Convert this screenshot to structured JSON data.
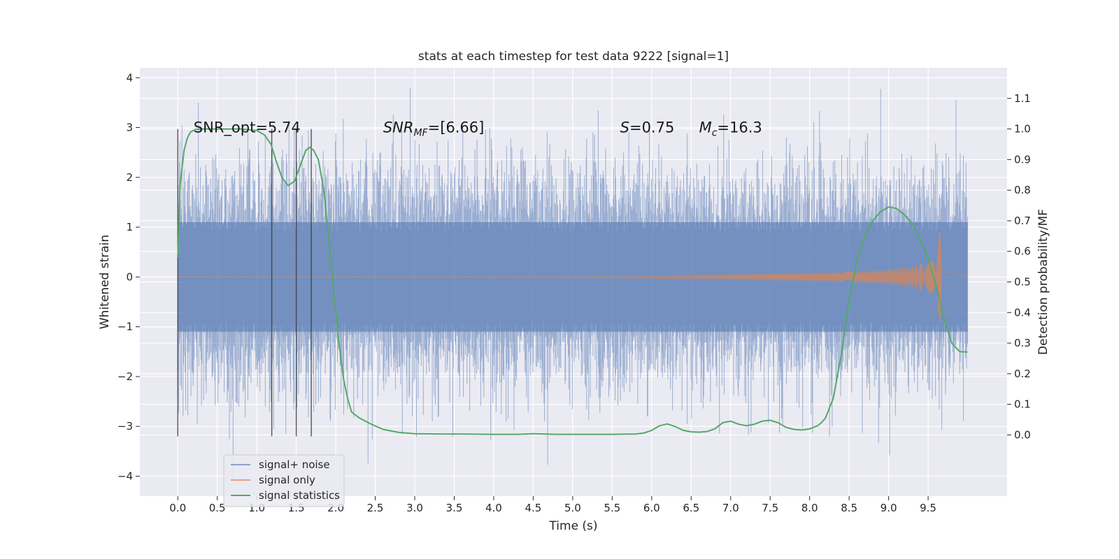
{
  "chart_data": {
    "type": "line",
    "title": "stats at each timestep for test data 9222 [signal=1]",
    "xlabel": "Time (s)",
    "ylabel_left": "Whitened strain",
    "ylabel_right": "Detection probability/MF",
    "xlim": [
      -0.48,
      10.5
    ],
    "ylim_left": [
      -4.4,
      4.2
    ],
    "ylim_right": [
      -0.2,
      1.2
    ],
    "x_ticks": [
      "0.0",
      "0.5",
      "1.0",
      "1.5",
      "2.0",
      "2.5",
      "3.0",
      "3.5",
      "4.0",
      "4.5",
      "5.0",
      "5.5",
      "6.0",
      "6.5",
      "7.0",
      "7.5",
      "8.0",
      "8.5",
      "9.0",
      "9.5"
    ],
    "y_left_ticks": [
      "-4",
      "-3",
      "-2",
      "-1",
      "0",
      "1",
      "2",
      "3",
      "4"
    ],
    "y_right_ticks": [
      "0.0",
      "0.1",
      "0.2",
      "0.3",
      "0.4",
      "0.5",
      "0.6",
      "0.7",
      "0.8",
      "0.9",
      "1.0",
      "1.1"
    ],
    "grid": true,
    "legend_position": "lower-left",
    "series": [
      {
        "name": "signal+ noise",
        "axis": "left",
        "color": "#4c72b0",
        "x_range": [
          0,
          10
        ],
        "envelope": {
          "core": [
            -1.1,
            1.1
          ],
          "typical_peak": 2.3,
          "max": 3.8,
          "min": -4.05
        }
      },
      {
        "name": "signal only",
        "axis": "left",
        "color": "#dd8452",
        "chirp": {
          "x": [
            0,
            5.5,
            7.0,
            8.0,
            8.5,
            9.0,
            9.3,
            9.5,
            9.6,
            9.66
          ],
          "amplitude": [
            0.0,
            0.02,
            0.05,
            0.08,
            0.1,
            0.15,
            0.22,
            0.32,
            0.5,
            1.05
          ],
          "end": 9.67
        }
      },
      {
        "name": "signal statistics",
        "axis": "right",
        "color": "#55a868",
        "x": [
          0,
          0.03,
          0.08,
          0.12,
          0.16,
          0.22,
          0.3,
          0.5,
          0.8,
          1.0,
          1.1,
          1.18,
          1.24,
          1.32,
          1.4,
          1.48,
          1.55,
          1.62,
          1.67,
          1.72,
          1.78,
          1.85,
          1.92,
          2.0,
          2.05,
          2.1,
          2.15,
          2.2,
          2.3,
          2.45,
          2.6,
          2.8,
          3.0,
          3.3,
          3.6,
          4.0,
          4.3,
          4.5,
          4.8,
          5.0,
          5.5,
          5.8,
          5.9,
          6.0,
          6.1,
          6.2,
          6.3,
          6.4,
          6.5,
          6.6,
          6.7,
          6.8,
          6.9,
          7.0,
          7.1,
          7.2,
          7.3,
          7.4,
          7.5,
          7.6,
          7.7,
          7.8,
          7.9,
          8.0,
          8.05,
          8.1,
          8.15,
          8.2,
          8.3,
          8.4,
          8.5,
          8.6,
          8.7,
          8.8,
          8.9,
          9.0,
          9.1,
          9.2,
          9.3,
          9.4,
          9.5,
          9.6,
          9.7,
          9.8,
          9.9,
          10.0
        ],
        "y": [
          0.58,
          0.82,
          0.93,
          0.97,
          0.99,
          0.998,
          1.0,
          1.0,
          1.0,
          0.995,
          0.98,
          0.95,
          0.9,
          0.84,
          0.815,
          0.83,
          0.88,
          0.93,
          0.94,
          0.93,
          0.9,
          0.8,
          0.62,
          0.4,
          0.28,
          0.18,
          0.12,
          0.075,
          0.055,
          0.035,
          0.018,
          0.008,
          0.004,
          0.003,
          0.003,
          0.002,
          0.002,
          0.004,
          0.002,
          0.002,
          0.002,
          0.003,
          0.006,
          0.015,
          0.03,
          0.036,
          0.027,
          0.015,
          0.01,
          0.009,
          0.011,
          0.02,
          0.04,
          0.045,
          0.035,
          0.03,
          0.035,
          0.045,
          0.048,
          0.04,
          0.025,
          0.018,
          0.016,
          0.02,
          0.025,
          0.03,
          0.04,
          0.055,
          0.12,
          0.26,
          0.44,
          0.57,
          0.65,
          0.7,
          0.73,
          0.745,
          0.74,
          0.72,
          0.69,
          0.64,
          0.575,
          0.49,
          0.38,
          0.3,
          0.272,
          0.271
        ]
      }
    ],
    "vertical_markers": {
      "x": [
        0.0,
        1.19,
        1.5,
        1.69
      ],
      "y_range": [
        -3.2,
        2.97
      ]
    },
    "annotations": [
      {
        "text": "SNR_opt=5.74",
        "x": 0.2,
        "y": 3.0
      },
      {
        "text": "=[6.66]",
        "prefix": "SNR",
        "sub": "MF",
        "x": 2.6,
        "y": 3.0
      },
      {
        "text": "=0.75",
        "prefix": "S",
        "x": 5.6,
        "y": 3.0
      },
      {
        "text": "=16.3",
        "prefix": "M",
        "sub": "c",
        "x": 6.6,
        "y": 3.0
      }
    ]
  }
}
